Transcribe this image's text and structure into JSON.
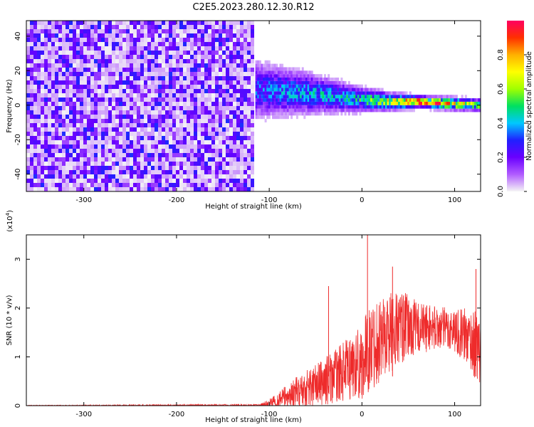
{
  "title": "C2E5.2023.280.12.30.R12",
  "colorbar": {
    "label": "Normalized spectral amplitude",
    "ticks": [
      "0.0",
      "0.2",
      "0.4",
      "0.6",
      "0.8"
    ],
    "tick_values": [
      0.0,
      0.2,
      0.4,
      0.6,
      0.8
    ],
    "range": [
      0,
      1
    ],
    "colors": [
      "#f5f5f5",
      "#b15cff",
      "#6a00ff",
      "#2020ff",
      "#00c8ff",
      "#00e060",
      "#a0ff00",
      "#ffff00",
      "#ffb000",
      "#ff3000",
      "#ff0060"
    ]
  },
  "chart_data": [
    {
      "type": "heatmap",
      "xlabel": "Height of straight line (km)",
      "ylabel": "Frequency (Hz)",
      "xlim": [
        -362,
        128
      ],
      "ylim": [
        -50,
        49
      ],
      "xticks": [
        -300,
        -200,
        -100,
        0,
        100
      ],
      "xtick_labels": [
        "-300",
        "-200",
        "-100",
        "0",
        "100"
      ],
      "yticks": [
        -40,
        -20,
        0,
        20,
        40
      ],
      "ytick_labels": [
        "-40",
        "-20",
        "0",
        "20",
        "40"
      ],
      "noise_region": {
        "x": [
          -362,
          -118
        ],
        "amplitude": 0.1
      },
      "signal_ridge": [
        {
          "x": -115,
          "y": 8,
          "half_width": 14,
          "amplitude": 0.35
        },
        {
          "x": -90,
          "y": 7,
          "half_width": 12,
          "amplitude": 0.4
        },
        {
          "x": -60,
          "y": 6,
          "half_width": 10,
          "amplitude": 0.45
        },
        {
          "x": -30,
          "y": 4,
          "half_width": 8,
          "amplitude": 0.45
        },
        {
          "x": 0,
          "y": 2,
          "half_width": 6,
          "amplitude": 0.5
        },
        {
          "x": 30,
          "y": 1,
          "half_width": 4,
          "amplitude": 0.8
        },
        {
          "x": 60,
          "y": 1,
          "half_width": 3,
          "amplitude": 0.95
        },
        {
          "x": 90,
          "y": 0,
          "half_width": 3,
          "amplitude": 0.9
        },
        {
          "x": 128,
          "y": -1,
          "half_width": 3,
          "amplitude": 0.6
        }
      ],
      "grid": false
    },
    {
      "type": "line",
      "xlabel": "Height of straight line (km)",
      "ylabel": "SNR (10 * v/v)",
      "y_multiplier_label": "(x10",
      "y_multiplier_exp": "4",
      "y_multiplier_close": ")",
      "xlim": [
        -362,
        128
      ],
      "ylim": [
        0,
        3.5
      ],
      "xticks": [
        -300,
        -200,
        -100,
        0,
        100
      ],
      "xtick_labels": [
        "-300",
        "-200",
        "-100",
        "0",
        "100"
      ],
      "yticks": [
        0,
        1,
        2,
        3
      ],
      "ytick_labels": [
        "0",
        "1",
        "2",
        "3"
      ],
      "series": [
        {
          "color": "#ee2b2b",
          "envelope_x": [
            -362,
            -110,
            -100,
            -80,
            -60,
            -40,
            -20,
            0,
            10,
            20,
            40,
            60,
            80,
            100,
            115,
            128
          ],
          "envelope_mean": [
            0.0,
            0.01,
            0.05,
            0.2,
            0.35,
            0.5,
            0.7,
            0.9,
            1.2,
            1.4,
            1.6,
            1.6,
            1.6,
            1.55,
            1.4,
            1.1
          ],
          "envelope_spread": [
            0.01,
            0.02,
            0.08,
            0.25,
            0.4,
            0.5,
            0.6,
            0.8,
            0.9,
            0.9,
            0.8,
            0.55,
            0.45,
            0.45,
            0.6,
            0.8
          ],
          "peaks": [
            {
              "x": -36,
              "y": 2.45
            },
            {
              "x": 6,
              "y": 3.5
            },
            {
              "x": 33,
              "y": 2.85
            },
            {
              "x": 123,
              "y": 2.8
            }
          ]
        }
      ],
      "grid": false
    }
  ]
}
